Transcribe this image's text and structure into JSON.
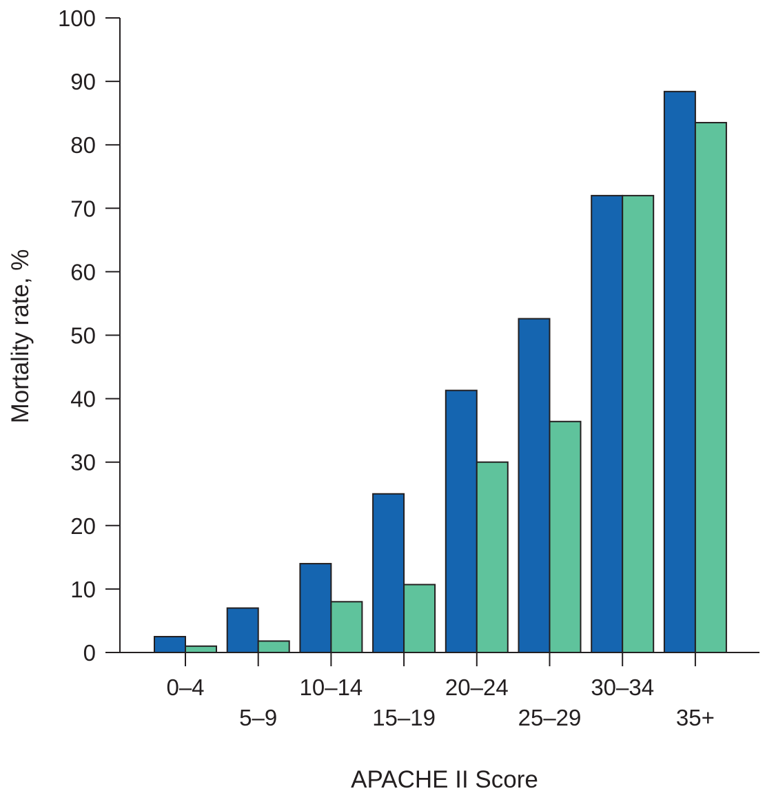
{
  "chart_data": {
    "type": "bar",
    "title": "",
    "xlabel": "APACHE II Score",
    "ylabel": "Mortality rate, %",
    "ylim": [
      0,
      100
    ],
    "yticks": [
      0,
      10,
      20,
      30,
      40,
      50,
      60,
      70,
      80,
      90,
      100
    ],
    "categories": [
      "0–4",
      "5–9",
      "10–14",
      "15–19",
      "20–24",
      "25–29",
      "30–34",
      "35+"
    ],
    "series": [
      {
        "color": "#1565b0",
        "values": [
          2.5,
          7,
          14,
          25,
          41.3,
          52.6,
          72,
          88.4
        ]
      },
      {
        "color": "#5fc39c",
        "values": [
          1,
          1.8,
          8,
          10.7,
          30,
          36.4,
          72,
          83.5
        ]
      }
    ],
    "grid": false,
    "legend": "none"
  }
}
